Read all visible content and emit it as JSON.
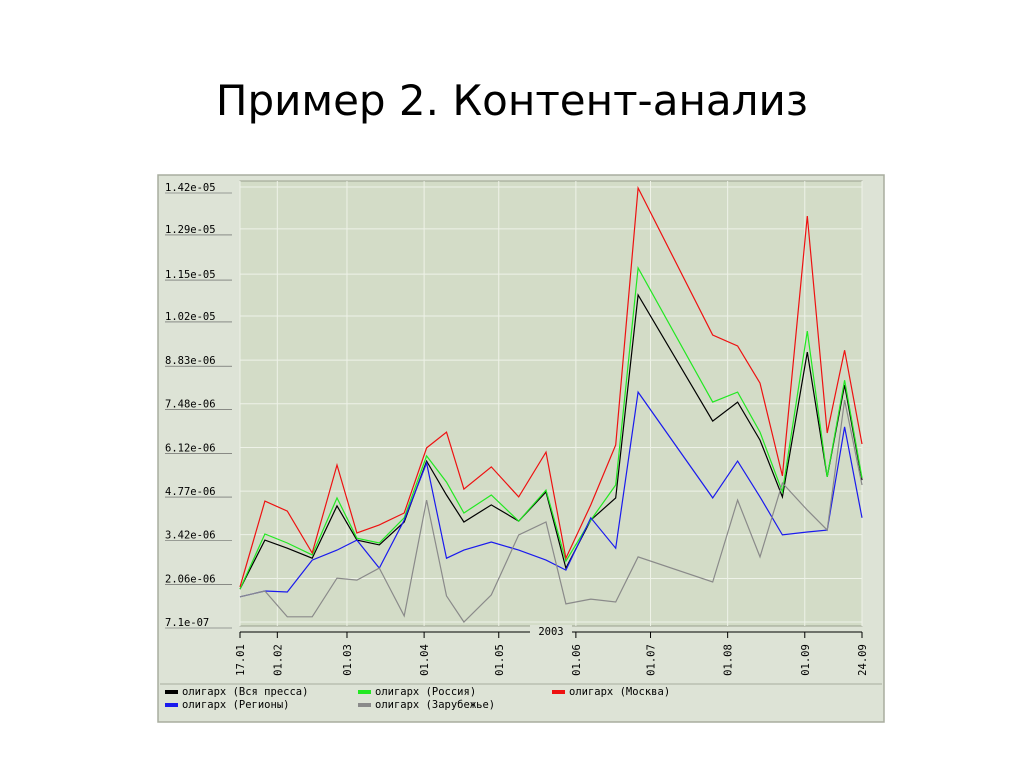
{
  "chart_data": {
    "type": "line",
    "title": "Пример 2. Контент-анализ",
    "x_label": "2003",
    "x": [
      "2003-01-17",
      "2003-01-27",
      "2003-02-05",
      "2003-02-15",
      "2003-02-25",
      "2003-03-05",
      "2003-03-14",
      "2003-03-24",
      "2003-04-02",
      "2003-04-10",
      "2003-04-17",
      "2003-04-28",
      "2003-05-09",
      "2003-05-20",
      "2003-05-28",
      "2003-06-07",
      "2003-06-17",
      "2003-06-26",
      "2003-07-26",
      "2003-08-05",
      "2003-08-14",
      "2003-08-23",
      "2003-09-02",
      "2003-09-10",
      "2003-09-17",
      "2003-09-24"
    ],
    "xlim": [
      "2003-01-17",
      "2003-09-24"
    ],
    "xticks": [
      {
        "value": "2003-01-17",
        "label": "17.01"
      },
      {
        "value": "2003-02-01",
        "label": "01.02"
      },
      {
        "value": "2003-03-01",
        "label": "01.03"
      },
      {
        "value": "2003-04-01",
        "label": "01.04"
      },
      {
        "value": "2003-05-01",
        "label": "01.05"
      },
      {
        "value": "2003-06-01",
        "label": "01.06"
      },
      {
        "value": "2003-07-01",
        "label": "01.07"
      },
      {
        "value": "2003-08-01",
        "label": "01.08"
      },
      {
        "value": "2003-09-01",
        "label": "01.09"
      },
      {
        "value": "2003-09-24",
        "label": "24.09"
      }
    ],
    "ylim": [
      7.1e-07,
      1.42e-05
    ],
    "yticks": [
      {
        "value": 7.1e-07,
        "label": "7.1e-07"
      },
      {
        "value": 2.06e-06,
        "label": "2.06e-06"
      },
      {
        "value": 3.42e-06,
        "label": "3.42e-06"
      },
      {
        "value": 4.77e-06,
        "label": "4.77e-06"
      },
      {
        "value": 6.12e-06,
        "label": "6.12e-06"
      },
      {
        "value": 7.48e-06,
        "label": "7.48e-06"
      },
      {
        "value": 8.83e-06,
        "label": "8.83e-06"
      },
      {
        "value": 1.02e-05,
        "label": "1.02e-05"
      },
      {
        "value": 1.15e-05,
        "label": "1.15e-05"
      },
      {
        "value": 1.29e-05,
        "label": "1.29e-05"
      },
      {
        "value": 1.42e-05,
        "label": "1.42e-05"
      }
    ],
    "grid": true,
    "series": [
      {
        "name": "олигарх (Вся пресса)",
        "color": "#000000",
        "values": [
          1.73e-06,
          3.25e-06,
          3e-06,
          2.69e-06,
          4.31e-06,
          3.25e-06,
          3.1e-06,
          3.81e-06,
          5.7e-06,
          4.65e-06,
          3.81e-06,
          4.34e-06,
          3.84e-06,
          4.74e-06,
          2.38e-06,
          3.87e-06,
          4.56e-06,
          1.085e-05,
          6.94e-06,
          7.53e-06,
          6.35e-06,
          4.59e-06,
          9.08e-06,
          5.21e-06,
          8.06e-06,
          5.11e-06
        ]
      },
      {
        "name": "олигарх (Россия)",
        "color": "#22e822",
        "values": [
          1.73e-06,
          3.44e-06,
          3.16e-06,
          2.79e-06,
          4.56e-06,
          3.31e-06,
          3.16e-06,
          3.94e-06,
          5.86e-06,
          5.05e-06,
          4.09e-06,
          4.65e-06,
          3.84e-06,
          4.8e-06,
          2.6e-06,
          3.87e-06,
          4.96e-06,
          1.169e-05,
          7.53e-06,
          7.84e-06,
          6.6e-06,
          4.74e-06,
          9.73e-06,
          5.21e-06,
          8.21e-06,
          5.18e-06
        ]
      },
      {
        "name": "олигарх (Москва)",
        "color": "#ee1111",
        "values": [
          1.8e-06,
          4.46e-06,
          4.15e-06,
          2.85e-06,
          5.58e-06,
          3.47e-06,
          3.72e-06,
          4.09e-06,
          6.11e-06,
          6.6e-06,
          4.83e-06,
          5.52e-06,
          4.59e-06,
          5.98e-06,
          2.69e-06,
          4.34e-06,
          6.2e-06,
          1.417e-05,
          9.61e-06,
          9.27e-06,
          8.12e-06,
          5.24e-06,
          1.33e-05,
          6.57e-06,
          9.14e-06,
          6.23e-06
        ]
      },
      {
        "name": "олигарх (Регионы)",
        "color": "#1a1aee",
        "values": [
          1.49e-06,
          1.67e-06,
          1.64e-06,
          2.63e-06,
          2.94e-06,
          3.25e-06,
          2.38e-06,
          3.87e-06,
          5.64e-06,
          2.69e-06,
          2.94e-06,
          3.19e-06,
          2.94e-06,
          2.63e-06,
          2.32e-06,
          3.94e-06,
          3e-06,
          7.84e-06,
          4.56e-06,
          5.7e-06,
          4.59e-06,
          3.41e-06,
          3.5e-06,
          3.56e-06,
          6.76e-06,
          3.94e-06
        ]
      },
      {
        "name": "олигарх (Зарубежье)",
        "color": "#8a8a8a",
        "values": [
          1.49e-06,
          1.67e-06,
          8.7e-07,
          8.7e-07,
          2.07e-06,
          2.01e-06,
          2.38e-06,
          9e-07,
          4.49e-06,
          1.52e-06,
          7.1e-07,
          1.55e-06,
          3.41e-06,
          3.81e-06,
          1.27e-06,
          1.42e-06,
          1.33e-06,
          2.73e-06,
          1.95e-06,
          4.49e-06,
          2.73e-06,
          5.02e-06,
          4.18e-06,
          3.56e-06,
          7.59e-06,
          4.96e-06
        ]
      }
    ]
  }
}
